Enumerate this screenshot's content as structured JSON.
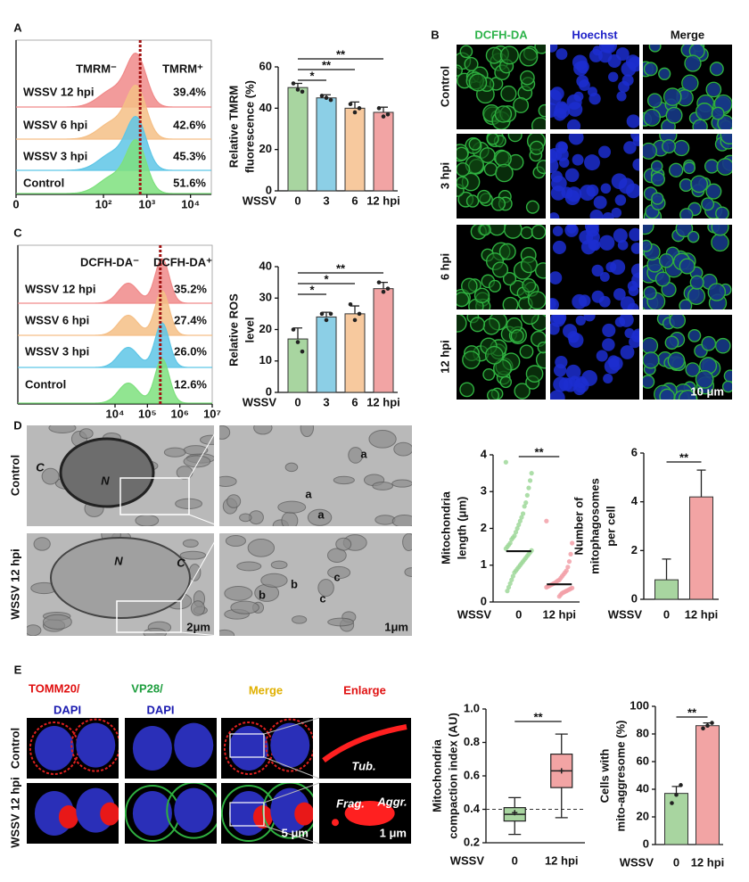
{
  "panel_labels": [
    "A",
    "B",
    "C",
    "D",
    "E"
  ],
  "panel_b": {
    "columns": [
      "DCFH-DA",
      "Hoechst",
      "Merge"
    ],
    "rows": [
      "Control",
      "3 hpi",
      "6 hpi",
      "12 hpi"
    ],
    "scale_bar": "10 μm"
  },
  "panel_d": {
    "rows": [
      "Control",
      "WSSV 12 hpi"
    ],
    "labels": [
      "C",
      "N",
      "a",
      "a",
      "a",
      "N",
      "C",
      "b",
      "b",
      "c",
      "c"
    ],
    "scale_bars": [
      "2μm",
      "1μm"
    ]
  },
  "panel_e": {
    "columns": [
      "TOMM20/",
      "DAPI",
      "VP28/",
      "DAPI",
      "Merge",
      "Enlarge"
    ],
    "rows": [
      "Control",
      "WSSV 12 hpi"
    ],
    "labels": [
      "Tub.",
      "Frag.",
      "Aggr."
    ],
    "scale_bars": [
      "5 μm",
      "1 μm"
    ]
  },
  "chart_data": [
    {
      "type": "flow",
      "gate_labels": [
        "TMRM⁻",
        "TMRM⁺"
      ],
      "series": [
        {
          "name": "WSSV 12 hpi",
          "color": "#f08a8a"
        },
        {
          "name": "WSSV 6 hpi",
          "color": "#f5bf86"
        },
        {
          "name": "WSSV 3 hpi",
          "color": "#5ec6e6"
        },
        {
          "name": "Control",
          "color": "#7ee07e"
        }
      ],
      "values": [
        39.4,
        42.6,
        45.3,
        51.6
      ],
      "value_labels": [
        "39.4%",
        "42.6%",
        "45.3%",
        "51.6%"
      ],
      "xscale": "symlog",
      "xlim": [
        0,
        30000
      ],
      "xticks": [
        0,
        {
          "value": 100,
          "label": "10²"
        },
        {
          "value": 1000,
          "label": "10³"
        },
        {
          "value": 10000,
          "label": "10⁴"
        }
      ],
      "gate": 700,
      "gate_color": "#a01010"
    },
    {
      "type": "bar",
      "ylabel": [
        "Relative TMRM",
        "fluorescence (%)"
      ],
      "xlabel": "WSSV",
      "categories": [
        "0",
        "3",
        "6",
        "12 hpi"
      ],
      "values": [
        50,
        45,
        40,
        38
      ],
      "errors": [
        2,
        1.5,
        3,
        2.5
      ],
      "points": [
        [
          52,
          49,
          48
        ],
        [
          46,
          45,
          44
        ],
        [
          42,
          38,
          40
        ],
        [
          40,
          36,
          37
        ]
      ],
      "colors": [
        "#a8d5a0",
        "#8ccfe6",
        "#f7c99e",
        "#f2a4a4"
      ],
      "ylim": [
        0,
        60
      ],
      "yticks": [
        0,
        20,
        40,
        60
      ],
      "annotations": [
        {
          "text": "**",
          "between": [
            "0",
            "12 hpi"
          ]
        },
        {
          "text": "**",
          "between": [
            "0",
            "6"
          ]
        },
        {
          "text": "*",
          "between": [
            "0",
            "3"
          ]
        }
      ]
    },
    {
      "type": "flow",
      "gate_labels": [
        "DCFH-DA⁻",
        "DCFH-DA⁺"
      ],
      "series": [
        {
          "name": "WSSV 12 hpi",
          "color": "#f08a8a"
        },
        {
          "name": "WSSV 6 hpi",
          "color": "#f5bf86"
        },
        {
          "name": "WSSV 3 hpi",
          "color": "#5ec6e6"
        },
        {
          "name": "Control",
          "color": "#7ee07e"
        }
      ],
      "values": [
        35.2,
        27.4,
        26.0,
        12.6
      ],
      "value_labels": [
        "35.2%",
        "27.4%",
        "26.0%",
        "12.6%"
      ],
      "xscale": "log",
      "xlim": [
        10,
        10000000
      ],
      "xticks": [
        {
          "value": 10000,
          "label": "10⁴"
        },
        {
          "value": 100000,
          "label": "10⁵"
        },
        {
          "value": 1000000,
          "label": "10⁶"
        },
        {
          "value": 10000000,
          "label": "10⁷"
        }
      ],
      "gate": 250000,
      "gate_color": "#a01010"
    },
    {
      "type": "bar",
      "ylabel": [
        "Relative ROS",
        "level"
      ],
      "xlabel": "WSSV",
      "categories": [
        "0",
        "3",
        "6",
        "12 hpi"
      ],
      "values": [
        17,
        24,
        25,
        33
      ],
      "errors": [
        3.5,
        1.5,
        2.5,
        2
      ],
      "points": [
        [
          20,
          16,
          13
        ],
        [
          25,
          23,
          25
        ],
        [
          28,
          23,
          25
        ],
        [
          35,
          32,
          33
        ]
      ],
      "colors": [
        "#a8d5a0",
        "#8ccfe6",
        "#f7c99e",
        "#f2a4a4"
      ],
      "ylim": [
        0,
        40
      ],
      "yticks": [
        0,
        10,
        20,
        30,
        40
      ],
      "annotations": [
        {
          "text": "**",
          "between": [
            "0",
            "12 hpi"
          ]
        },
        {
          "text": "*",
          "between": [
            "0",
            "6"
          ]
        },
        {
          "text": "*",
          "between": [
            "0",
            "3"
          ]
        }
      ]
    },
    {
      "type": "strip",
      "ylabel": [
        "Mitochondria",
        "length (μm)"
      ],
      "xlabel": "WSSV",
      "categories": [
        "0",
        "12 hpi"
      ],
      "values": [
        1.38,
        0.48
      ],
      "colors": [
        "#9fd89a",
        "#f2a0a8"
      ],
      "points": [
        [
          3.8,
          3.5,
          3.3,
          3.1,
          2.9,
          2.7,
          2.6,
          2.4,
          2.3,
          2.2,
          2.1,
          2.0,
          1.9,
          1.8,
          1.75,
          1.7,
          1.6,
          1.55,
          1.5,
          1.45,
          1.4,
          1.35,
          1.3,
          1.25,
          1.2,
          1.15,
          1.1,
          1.05,
          1.0,
          0.95,
          0.9,
          0.85,
          0.8,
          0.7,
          0.6,
          0.5,
          0.4,
          0.3
        ],
        [
          2.2,
          1.6,
          1.3,
          1.1,
          0.95,
          0.85,
          0.8,
          0.75,
          0.7,
          0.65,
          0.6,
          0.58,
          0.55,
          0.52,
          0.5,
          0.48,
          0.46,
          0.44,
          0.42,
          0.4,
          0.38,
          0.36,
          0.34,
          0.32,
          0.3,
          0.28,
          0.26,
          0.24,
          0.2,
          0.15
        ]
      ],
      "ylim": [
        0,
        4
      ],
      "yticks": [
        0,
        1,
        2,
        3,
        4
      ],
      "annotations": [
        {
          "text": "**",
          "between": [
            "0",
            "12 hpi"
          ]
        }
      ]
    },
    {
      "type": "bar",
      "ylabel": [
        "Number of",
        "mitophagosomes",
        "per cell"
      ],
      "xlabel": "WSSV",
      "categories": [
        "0",
        "12 hpi"
      ],
      "values": [
        0.8,
        4.2
      ],
      "errors": [
        0.85,
        1.1
      ],
      "colors": [
        "#a8d5a0",
        "#f2a4a4"
      ],
      "ylim": [
        0,
        6
      ],
      "yticks": [
        0,
        2,
        4,
        6
      ],
      "annotations": [
        {
          "text": "**",
          "between": [
            "0",
            "12 hpi"
          ]
        }
      ]
    },
    {
      "type": "box",
      "ylabel": [
        "Mitochondria",
        "compaction index (AU)"
      ],
      "xlabel": "WSSV",
      "categories": [
        "0",
        "12 hpi"
      ],
      "colors": [
        "#a8d5a0",
        "#f2a4a4"
      ],
      "boxes": [
        {
          "min": 0.25,
          "q1": 0.33,
          "median": 0.37,
          "q3": 0.41,
          "max": 0.47,
          "mean": 0.38
        },
        {
          "min": 0.35,
          "q1": 0.53,
          "median": 0.63,
          "q3": 0.73,
          "max": 0.85,
          "mean": 0.63
        }
      ],
      "reference": 0.4,
      "ylim": [
        0.2,
        1.0
      ],
      "yticks": [
        0.2,
        0.4,
        0.6,
        0.8,
        {
          "value": 1,
          "label": "1.0"
        }
      ],
      "annotations": [
        {
          "text": "**",
          "between": [
            "0",
            "12 hpi"
          ]
        }
      ]
    },
    {
      "type": "bar",
      "ylabel": [
        "Cells with",
        "mito-aggresome (%)"
      ],
      "xlabel": "WSSV",
      "categories": [
        "0",
        "12 hpi"
      ],
      "values": [
        37,
        86
      ],
      "errors": [
        5,
        2
      ],
      "points": [
        [
          30,
          36,
          43
        ],
        [
          84,
          86,
          88
        ]
      ],
      "colors": [
        "#a8d5a0",
        "#f2a4a4"
      ],
      "ylim": [
        0,
        100
      ],
      "yticks": [
        0,
        20,
        40,
        60,
        80,
        100
      ],
      "annotations": [
        {
          "text": "**",
          "between": [
            "0",
            "12 hpi"
          ]
        }
      ]
    }
  ]
}
